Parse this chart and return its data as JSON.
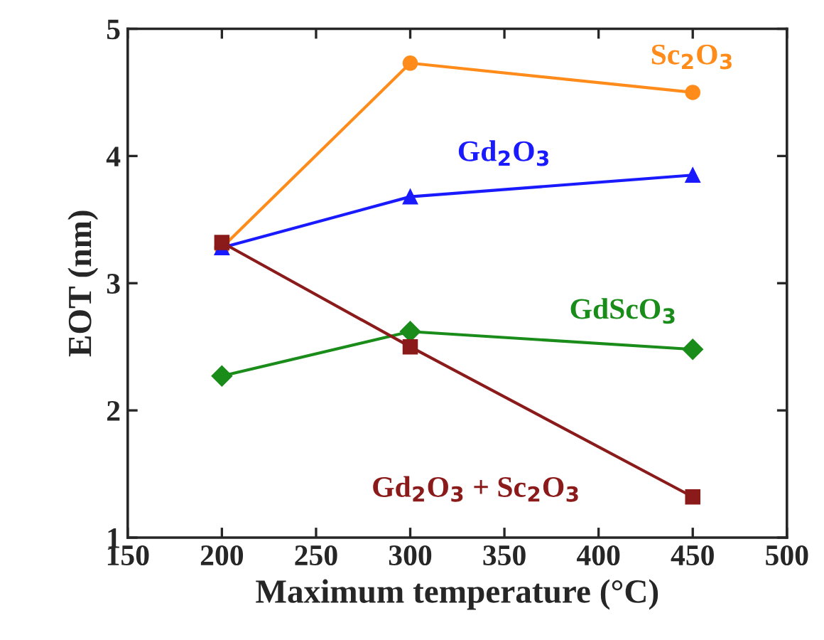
{
  "chart_data": {
    "type": "line",
    "xlabel": "Maximum temperature (°C)",
    "ylabel": "EOT (nm)",
    "x": [
      200,
      300,
      450
    ],
    "series": [
      {
        "name": "Sc$_{2}$O$_{3}$",
        "color": "#ff8c1a",
        "marker": "circle",
        "values": [
          3.28,
          4.73,
          4.5
        ]
      },
      {
        "name": "Gd$_{2}$O$_{3}$",
        "color": "#1a1aff",
        "marker": "triangle",
        "values": [
          3.28,
          3.68,
          3.85
        ]
      },
      {
        "name": "GdScO$_{3}$",
        "color": "#1a8c1a",
        "marker": "diamond",
        "values": [
          2.27,
          2.62,
          2.48
        ]
      },
      {
        "name": "Gd$_{2}$O$_{3}$ + Sc$_{2}$O$_{3}$",
        "color": "#8b1a1a",
        "marker": "square",
        "values": [
          3.32,
          2.5,
          1.32
        ]
      }
    ],
    "xlim": [
      150,
      500
    ],
    "xticks": [
      150,
      200,
      250,
      300,
      350,
      400,
      450,
      500
    ],
    "ylim": [
      1,
      5
    ],
    "yticks": [
      1,
      2,
      3,
      4,
      5
    ],
    "grid": false,
    "legend": false,
    "line_style": "solid"
  }
}
